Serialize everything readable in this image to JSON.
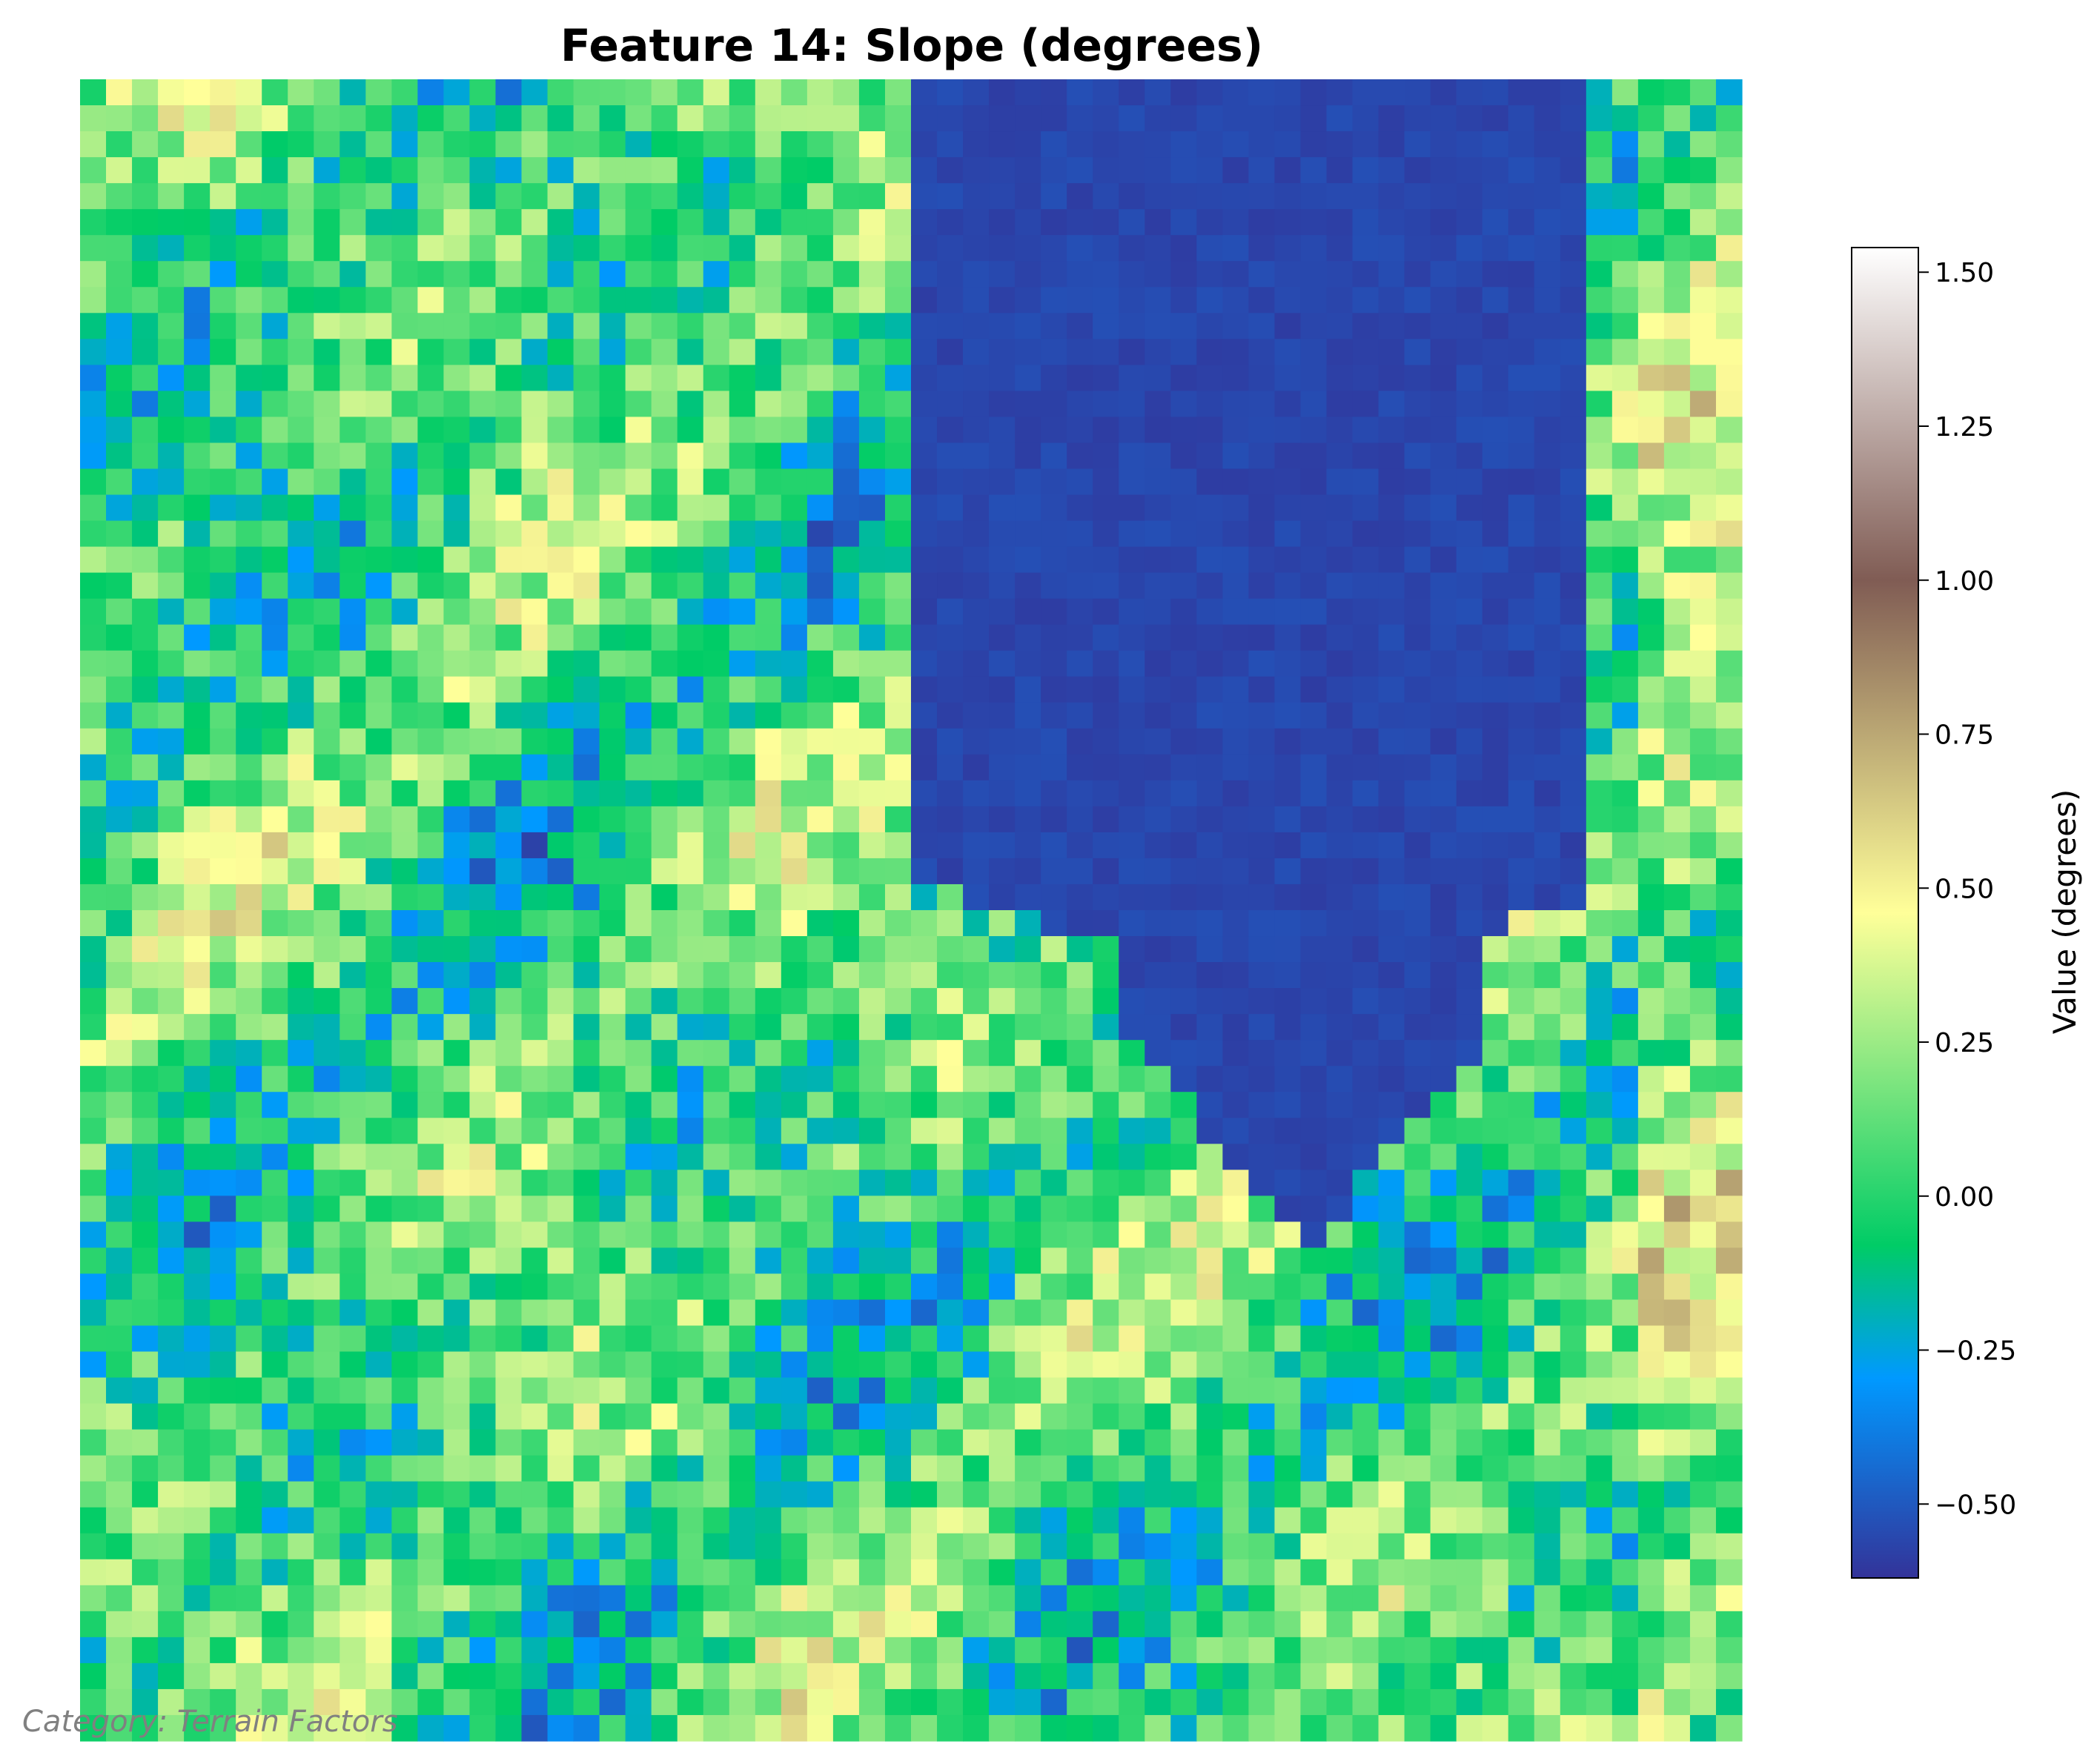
{
  "chart_data": {
    "type": "heatmap",
    "title": "Feature 14: Slope (degrees)",
    "colormap": "terrain",
    "value_range": [
      -0.62,
      1.54
    ],
    "colorbar": {
      "label": "Value (degrees)",
      "ticks": [
        -0.5,
        -0.25,
        0.0,
        0.25,
        0.5,
        0.75,
        1.0,
        1.25,
        1.5
      ],
      "tick_labels": [
        "−0.50",
        "−0.25",
        "0.00",
        "0.25",
        "0.50",
        "0.75",
        "1.00",
        "1.25",
        "1.50"
      ]
    },
    "grid": {
      "rows": 64,
      "cols": 64
    },
    "axes_visible": false,
    "footnote": "Category: Terrain Factors"
  }
}
